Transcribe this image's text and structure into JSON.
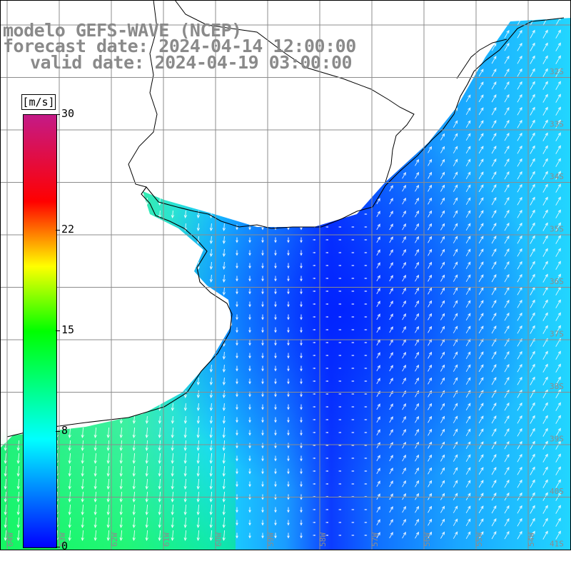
{
  "title": {
    "line1": "modelo GEFS-WAVE (NCEP)",
    "line2": "forecast date: 2024-04-14 12:00:00",
    "line3": "valid date: 2024-04-19 03:00:00"
  },
  "colorbar": {
    "unit": "[m/s]",
    "min": 0,
    "max": 30,
    "tick_labels": [
      "30",
      "22",
      "15",
      "8",
      "0"
    ],
    "tick_values": [
      30,
      22,
      15,
      8,
      0
    ],
    "colors": [
      "#0000ff",
      "#00ffff",
      "#00ff00",
      "#ffff00",
      "#ff0000",
      "#c41a87"
    ]
  },
  "map": {
    "variable": "wind speed",
    "lat_labels": [
      "32S",
      "33S",
      "34S",
      "35S",
      "36S",
      "37S",
      "38S",
      "39S",
      "40S",
      "41S"
    ],
    "lon_labels": [
      "64W",
      "63W",
      "62W",
      "61W",
      "60W",
      "59W",
      "58W",
      "57W",
      "56W",
      "55W",
      "54W"
    ],
    "grid_color": "#8c8c8c",
    "land_color": "#ffffff",
    "coast_color": "#000000",
    "vector_color": "#ffffff"
  }
}
